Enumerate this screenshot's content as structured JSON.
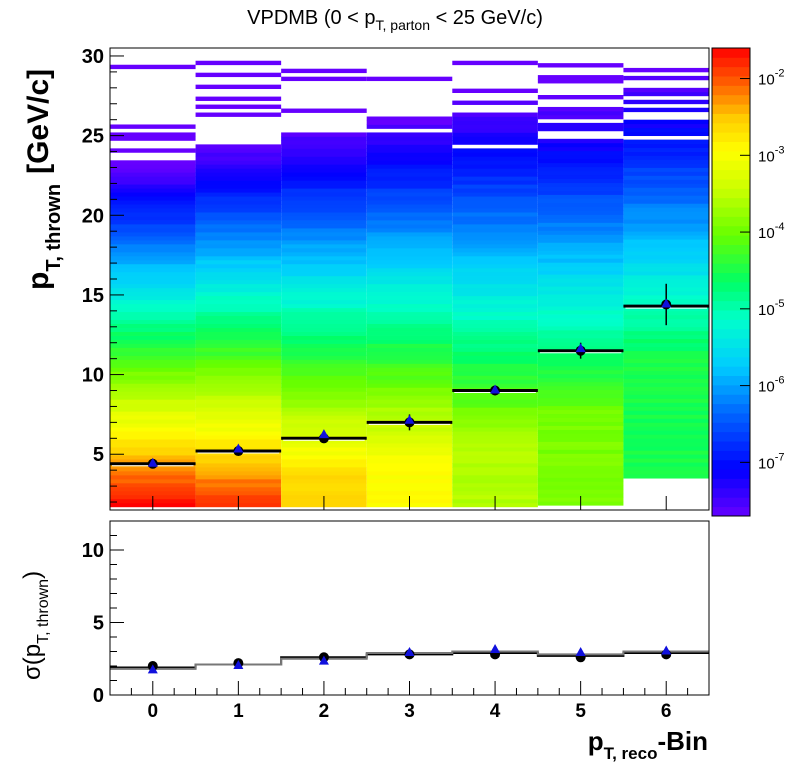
{
  "chart_data": [
    {
      "type": "heatmap",
      "title": "VPDMB (0 < p_{T, parton} < 25 GeV/c)",
      "title_parts": {
        "pre": "VPDMB (0 < p",
        "sub": "T, parton",
        "post": " < 25 GeV/c)"
      },
      "ylabel_parts": {
        "main": "p",
        "sub": "T, thrown",
        "unit": "[GeV/c]"
      },
      "xlim": [
        -0.5,
        6.5
      ],
      "ylim": [
        1.5,
        30.5
      ],
      "x_ticks": [
        0,
        1,
        2,
        3,
        4,
        5,
        6
      ],
      "y_ticks": [
        5,
        10,
        15,
        20,
        25,
        30
      ],
      "color_scale": "log",
      "colorbar_range": [
        2e-08,
        0.025
      ],
      "colorbar_labels": [
        {
          "base": "10",
          "exp": "-2",
          "value": 0.01
        },
        {
          "base": "10",
          "exp": "-3",
          "value": 0.001
        },
        {
          "base": "10",
          "exp": "-4",
          "value": 0.0001
        },
        {
          "base": "10",
          "exp": "-5",
          "value": 1e-05
        },
        {
          "base": "10",
          "exp": "-6",
          "value": 1e-06
        },
        {
          "base": "10",
          "exp": "-7",
          "value": 1e-07
        }
      ],
      "columns": [
        {
          "bin": 0,
          "y_min": 1.7,
          "peak_y": 1.7,
          "peak_value": 0.025,
          "decay_log_per_gev": 0.285,
          "top_y": 29.7
        },
        {
          "bin": 1,
          "y_min": 1.7,
          "peak_y": 2.2,
          "peak_value": 0.012,
          "decay_log_per_gev": 0.26,
          "top_y": 29.5
        },
        {
          "bin": 2,
          "y_min": 1.7,
          "peak_y": 3.2,
          "peak_value": 0.0025,
          "decay_log_per_gev": 0.23,
          "top_y": 29.3
        },
        {
          "bin": 3,
          "y_min": 1.7,
          "peak_y": 4.5,
          "peak_value": 0.0011,
          "decay_log_per_gev": 0.22,
          "top_y": 28.9
        },
        {
          "bin": 4,
          "y_min": 1.7,
          "peak_y": 5.5,
          "peak_value": 0.00026,
          "decay_log_per_gev": 0.19,
          "top_y": 29.6
        },
        {
          "bin": 5,
          "y_min": 1.8,
          "peak_y": 7.2,
          "peak_value": 0.00012,
          "decay_log_per_gev": 0.19,
          "top_y": 29.6
        },
        {
          "bin": 6,
          "y_min": 3.5,
          "peak_y": 11.0,
          "peak_value": 3e-05,
          "decay_log_per_gev": 0.18,
          "top_y": 29.6
        }
      ],
      "series": [
        {
          "marker": "black-circle",
          "x": [
            0,
            1,
            2,
            3,
            4,
            5,
            6
          ],
          "y": [
            4.4,
            5.2,
            6.0,
            7.0,
            9.0,
            11.5,
            14.4
          ],
          "yerr": [
            0.1,
            0.2,
            0.3,
            0.5,
            0.3,
            0.5,
            1.3
          ]
        },
        {
          "marker": "blue-triangle",
          "x": [
            0,
            1,
            2,
            3,
            4,
            5,
            6
          ],
          "y": [
            4.4,
            5.3,
            6.2,
            7.1,
            9.0,
            11.6,
            14.4
          ]
        }
      ],
      "bin_profile": [
        {
          "x": 0,
          "y": 4.4
        },
        {
          "x": 1,
          "y": 5.2
        },
        {
          "x": 2,
          "y": 6.0
        },
        {
          "x": 3,
          "y": 7.0
        },
        {
          "x": 4,
          "y": 9.0
        },
        {
          "x": 5,
          "y": 11.5
        },
        {
          "x": 6,
          "y": 14.3
        }
      ]
    },
    {
      "type": "scatter",
      "ylabel_parts": {
        "pre": "σ(p",
        "sub": "T, thrown",
        "post": ")"
      },
      "xlabel_parts": {
        "main": "p",
        "sub": "T, reco",
        "post": "-Bin"
      },
      "xlim": [
        -0.5,
        6.5
      ],
      "ylim": [
        0,
        12
      ],
      "x_ticks": [
        0,
        1,
        2,
        3,
        4,
        5,
        6
      ],
      "y_ticks": [
        0,
        5,
        10
      ],
      "series": [
        {
          "marker": "black-circle",
          "x": [
            0,
            1,
            2,
            3,
            4,
            5,
            6
          ],
          "y": [
            2.0,
            2.2,
            2.6,
            2.8,
            2.8,
            2.6,
            2.8
          ]
        },
        {
          "marker": "blue-triangle",
          "x": [
            0,
            1,
            2,
            3,
            4,
            5,
            6
          ],
          "y": [
            1.7,
            2.0,
            2.3,
            2.9,
            3.1,
            2.9,
            3.0
          ]
        }
      ],
      "steps": [
        {
          "color": "black",
          "y": [
            1.9,
            2.1,
            2.6,
            2.8,
            2.9,
            2.7,
            2.9
          ]
        },
        {
          "color": "gray",
          "y": [
            1.8,
            2.1,
            2.5,
            2.9,
            3.0,
            2.8,
            3.0
          ]
        }
      ]
    }
  ]
}
